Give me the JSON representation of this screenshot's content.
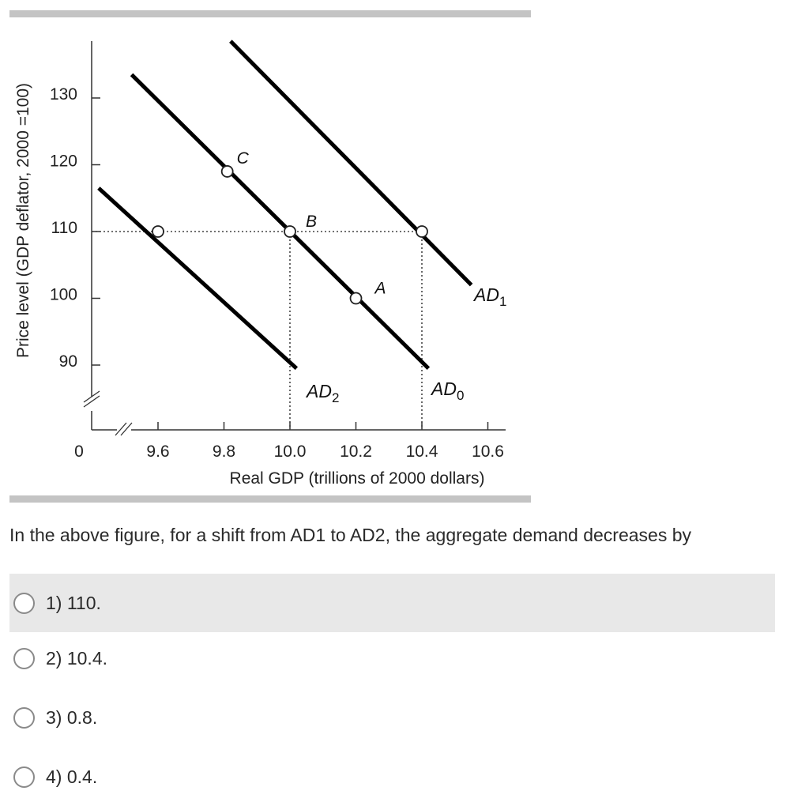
{
  "chart_data": {
    "type": "line",
    "ylabel": "Price level (GDP deflator, 2000 =100)",
    "xlabel": "Real GDP (trillions of 2000 dollars)",
    "y_ticks": [
      90,
      100,
      110,
      120,
      130
    ],
    "x_ticks": [
      9.6,
      9.8,
      10.0,
      10.2,
      10.4,
      10.6
    ],
    "origin_label": "0",
    "x_tick_labels": [
      "9.6",
      "9.8",
      "10.0",
      "10.2",
      "10.4",
      "10.6"
    ],
    "y_tick_labels": [
      "90",
      "100",
      "110",
      "120",
      "130"
    ],
    "series": [
      {
        "name": "AD2",
        "label_main": "AD",
        "label_sub": "2",
        "x": [
          9.42,
          10.02
        ],
        "y": [
          116.5,
          89.5
        ]
      },
      {
        "name": "AD0",
        "label_main": "AD",
        "label_sub": "0",
        "x": [
          9.52,
          10.42
        ],
        "y": [
          133.5,
          89.5
        ]
      },
      {
        "name": "AD1",
        "label_main": "AD",
        "label_sub": "1",
        "x": [
          9.82,
          10.55
        ],
        "y": [
          138.5,
          102.0
        ]
      }
    ],
    "points": [
      {
        "label": "C",
        "x": 9.81,
        "y": 119.0
      },
      {
        "label": "B",
        "x": 10.0,
        "y": 110.0
      },
      {
        "label": "A",
        "x": 10.2,
        "y": 100.0
      },
      {
        "label": "",
        "x": 9.6,
        "y": 110.0
      },
      {
        "label": "",
        "x": 10.4,
        "y": 110.0
      }
    ],
    "reference_lines": {
      "horizontal_y": 110,
      "vertical_x": [
        10.0,
        10.4
      ]
    }
  },
  "question": {
    "text": "In the above figure, for a shift from AD1 to AD2, the aggregate demand decreases by"
  },
  "options": [
    {
      "label": "1) 110.",
      "highlighted": true
    },
    {
      "label": "2) 10.4.",
      "highlighted": false
    },
    {
      "label": "3) 0.8.",
      "highlighted": false
    },
    {
      "label": "4) 0.4.",
      "highlighted": false
    }
  ]
}
